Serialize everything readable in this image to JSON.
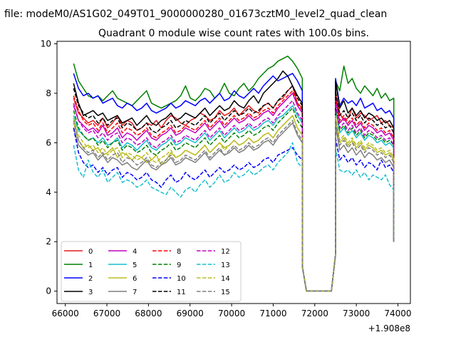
{
  "header": {
    "suptitle": "file: modeM0/AS1G02_049T01_9000000280_01673cztM0_level2_quad_clean"
  },
  "chart_data": {
    "type": "line",
    "title": "Quadrant 0 module wise count rates with 100.0s bins.",
    "xlabel": "",
    "ylabel": "",
    "x_offset_label": "+1.908e8",
    "x_offset": 190800000,
    "xlim": [
      65800,
      74300
    ],
    "ylim": [
      -0.5,
      10.1
    ],
    "x_ticks": [
      66000,
      67000,
      68000,
      69000,
      70000,
      71000,
      72000,
      73000,
      74000
    ],
    "y_ticks": [
      0,
      2,
      4,
      6,
      8,
      10
    ],
    "grid": false,
    "legend_position": "lower-left",
    "legend_columns": 4,
    "gap": {
      "drop_start": 71600,
      "drop_end": 71800,
      "zero_start": 71800,
      "zero_end": 72400,
      "rise_end": 72600
    },
    "segments": [
      {
        "x_start": 66200,
        "x_end": 71700
      },
      {
        "x_start": 72500,
        "x_end": 73900
      }
    ],
    "series": [
      {
        "name": "0",
        "color": "#e41a1c",
        "dash": "solid",
        "seg1": [
          7.8,
          7.2,
          7.0,
          6.8,
          6.9,
          6.7,
          7.0,
          6.6,
          6.8,
          7.1,
          6.7,
          6.9,
          6.8,
          6.5,
          6.6,
          6.8,
          6.7,
          6.9,
          6.6,
          6.9,
          7.1,
          7.0,
          6.8,
          6.7,
          6.9,
          7.0,
          7.2,
          7.1,
          6.9,
          7.0,
          7.3,
          7.1,
          7.2,
          7.4,
          7.1,
          7.3,
          7.5,
          7.3,
          7.2,
          7.5,
          7.6,
          7.4,
          7.7,
          7.8,
          8.1,
          8.3,
          7.6,
          7.4
        ],
        "seg2": [
          8.0,
          7.2,
          6.9,
          7.0,
          7.4,
          7.0,
          7.2,
          7.1,
          6.9,
          7.0,
          7.1,
          6.8,
          6.9,
          6.7,
          6.6
        ]
      },
      {
        "name": "1",
        "color": "#008000",
        "dash": "solid",
        "seg1": [
          9.2,
          8.5,
          8.2,
          7.9,
          7.8,
          7.9,
          7.7,
          7.9,
          8.1,
          7.8,
          7.7,
          7.6,
          7.5,
          7.7,
          7.9,
          8.1,
          7.6,
          7.5,
          7.4,
          7.5,
          7.6,
          7.7,
          7.9,
          8.3,
          7.8,
          7.7,
          7.9,
          8.2,
          8.1,
          7.8,
          8.0,
          8.4,
          8.0,
          7.9,
          8.2,
          8.4,
          8.1,
          8.3,
          8.6,
          8.8,
          9.0,
          9.1,
          9.3,
          9.4,
          9.5,
          9.3,
          9.0,
          8.6
        ],
        "seg2": [
          8.5,
          8.1,
          9.1,
          8.4,
          8.6,
          8.2,
          8.0,
          8.3,
          8.1,
          7.9,
          8.2,
          7.8,
          8.0,
          7.7,
          7.8
        ]
      },
      {
        "name": "2",
        "color": "#0000ff",
        "dash": "solid",
        "seg1": [
          8.8,
          8.2,
          7.9,
          8.0,
          7.8,
          7.9,
          7.6,
          7.7,
          7.8,
          7.5,
          7.4,
          7.6,
          7.5,
          7.3,
          7.4,
          7.6,
          7.3,
          7.2,
          7.3,
          7.4,
          7.6,
          7.4,
          7.5,
          7.7,
          7.6,
          7.5,
          7.7,
          7.8,
          7.6,
          7.8,
          8.0,
          7.7,
          7.8,
          8.1,
          7.9,
          7.8,
          8.0,
          8.2,
          8.0,
          8.3,
          8.5,
          8.7,
          8.5,
          8.6,
          8.7,
          8.8,
          8.5,
          8.1
        ],
        "seg2": [
          8.6,
          7.5,
          7.8,
          7.6,
          7.7,
          7.5,
          7.8,
          7.4,
          7.5,
          7.6,
          7.3,
          7.4,
          7.2,
          7.3,
          7.0
        ]
      },
      {
        "name": "3",
        "color": "#000000",
        "dash": "solid",
        "seg1": [
          8.4,
          7.6,
          7.1,
          7.2,
          7.3,
          7.1,
          7.2,
          6.9,
          7.0,
          7.1,
          6.8,
          6.9,
          7.0,
          6.7,
          6.9,
          7.1,
          6.8,
          6.7,
          6.9,
          7.0,
          7.2,
          6.9,
          7.0,
          7.2,
          7.1,
          7.0,
          7.2,
          7.4,
          7.1,
          7.3,
          7.5,
          7.3,
          7.4,
          7.7,
          7.5,
          7.4,
          7.7,
          7.9,
          7.6,
          8.0,
          8.2,
          8.4,
          8.6,
          8.9,
          8.7,
          8.3,
          7.9,
          7.6
        ],
        "seg2": [
          8.5,
          7.4,
          7.7,
          7.2,
          7.4,
          7.1,
          7.3,
          7.0,
          7.2,
          7.1,
          6.9,
          7.0,
          6.8,
          6.9,
          6.6
        ]
      },
      {
        "name": "4",
        "color": "#c000c0",
        "dash": "solid",
        "seg1": [
          7.5,
          6.9,
          6.7,
          6.5,
          6.6,
          6.4,
          6.7,
          6.3,
          6.4,
          6.6,
          6.2,
          6.4,
          6.3,
          6.1,
          6.3,
          6.5,
          6.2,
          6.1,
          6.3,
          6.4,
          6.6,
          6.3,
          6.4,
          6.6,
          6.5,
          6.4,
          6.6,
          6.8,
          6.5,
          6.7,
          6.9,
          6.6,
          6.8,
          7.0,
          6.8,
          6.9,
          7.1,
          6.9,
          7.0,
          7.2,
          7.3,
          7.1,
          7.4,
          7.6,
          7.8,
          8.0,
          7.5,
          7.2
        ],
        "seg2": [
          7.8,
          6.8,
          7.0,
          6.7,
          6.9,
          6.6,
          6.8,
          6.5,
          6.7,
          6.6,
          6.4,
          6.5,
          6.3,
          6.4,
          6.1
        ]
      },
      {
        "name": "5",
        "color": "#17becf",
        "dash": "solid",
        "seg1": [
          7.1,
          6.5,
          6.3,
          6.1,
          6.2,
          6.0,
          6.2,
          5.9,
          6.0,
          6.2,
          5.8,
          6.0,
          5.9,
          5.7,
          5.9,
          6.1,
          5.8,
          5.7,
          5.9,
          6.0,
          6.2,
          5.9,
          6.0,
          6.2,
          6.1,
          6.0,
          6.2,
          6.4,
          6.1,
          6.3,
          6.5,
          6.2,
          6.4,
          6.6,
          6.4,
          6.5,
          6.7,
          6.5,
          6.6,
          6.8,
          6.9,
          6.7,
          7.0,
          7.1,
          7.3,
          7.5,
          7.1,
          6.8
        ],
        "seg2": [
          7.4,
          6.4,
          6.6,
          6.3,
          6.5,
          6.2,
          6.4,
          6.1,
          6.3,
          6.2,
          6.0,
          6.1,
          5.9,
          6.0,
          5.8
        ]
      },
      {
        "name": "6",
        "color": "#bcbd22",
        "dash": "solid",
        "seg1": [
          6.8,
          6.1,
          5.8,
          5.9,
          5.7,
          5.8,
          5.5,
          5.6,
          5.8,
          5.4,
          5.6,
          5.5,
          5.3,
          5.5,
          5.4,
          5.2,
          5.3,
          5.5,
          5.1,
          5.3,
          5.6,
          5.4,
          5.5,
          5.7,
          5.6,
          5.5,
          5.7,
          5.9,
          5.6,
          5.8,
          6.0,
          5.8,
          5.9,
          6.1,
          5.9,
          6.0,
          6.2,
          6.0,
          6.1,
          6.3,
          6.4,
          6.2,
          6.5,
          6.7,
          6.9,
          7.1,
          6.6,
          6.3
        ],
        "seg2": [
          7.0,
          6.0,
          6.2,
          5.9,
          6.1,
          5.8,
          6.0,
          5.7,
          5.9,
          5.8,
          5.6,
          5.7,
          5.5,
          5.6,
          5.3
        ]
      },
      {
        "name": "7",
        "color": "#7f7f7f",
        "dash": "solid",
        "seg1": [
          6.6,
          5.9,
          5.7,
          5.5,
          5.6,
          5.3,
          5.5,
          5.2,
          5.4,
          5.3,
          5.1,
          5.2,
          5.0,
          4.9,
          5.1,
          5.3,
          5.0,
          4.9,
          5.1,
          5.2,
          5.4,
          5.1,
          5.2,
          5.4,
          5.3,
          5.2,
          5.4,
          5.6,
          5.3,
          5.5,
          5.7,
          5.5,
          5.6,
          5.8,
          5.6,
          5.7,
          5.9,
          5.7,
          5.8,
          6.0,
          6.1,
          5.9,
          6.2,
          6.4,
          6.6,
          6.8,
          6.3,
          6.0
        ],
        "seg2": [
          6.7,
          5.7,
          5.9,
          5.6,
          5.8,
          5.5,
          5.7,
          5.4,
          5.6,
          5.5,
          5.3,
          5.4,
          5.2,
          5.3,
          5.0
        ]
      },
      {
        "name": "8",
        "color": "#ff0000",
        "dash": "dashed",
        "seg1": [
          7.9,
          7.3,
          6.9,
          6.7,
          6.8,
          6.5,
          6.8,
          6.4,
          6.6,
          6.8,
          6.4,
          6.6,
          6.5,
          6.3,
          6.4,
          6.6,
          6.3,
          6.2,
          6.4,
          6.5,
          6.7,
          6.4,
          6.5,
          6.7,
          6.6,
          6.5,
          6.7,
          6.9,
          6.6,
          6.8,
          7.0,
          6.7,
          6.9,
          7.1,
          6.9,
          7.0,
          7.2,
          7.0,
          7.1,
          7.3,
          7.4,
          7.2,
          7.5,
          7.7,
          7.9,
          8.1,
          7.6,
          7.3
        ],
        "seg2": [
          7.9,
          6.9,
          7.1,
          6.8,
          7.0,
          6.7,
          6.9,
          6.6,
          6.8,
          6.7,
          6.5,
          6.6,
          6.4,
          6.5,
          6.2
        ]
      },
      {
        "name": "9",
        "color": "#008000",
        "dash": "dashed",
        "seg1": [
          7.3,
          6.6,
          6.3,
          6.1,
          6.2,
          5.9,
          6.1,
          5.8,
          6.0,
          6.1,
          5.7,
          5.9,
          5.8,
          5.6,
          5.7,
          5.9,
          5.6,
          5.5,
          5.7,
          5.8,
          6.0,
          5.7,
          5.8,
          6.0,
          5.9,
          5.8,
          6.0,
          6.2,
          5.9,
          6.1,
          6.3,
          6.0,
          6.2,
          6.4,
          6.2,
          6.3,
          6.5,
          6.3,
          6.4,
          6.6,
          6.7,
          6.5,
          6.8,
          7.0,
          7.2,
          7.4,
          6.9,
          6.6
        ],
        "seg2": [
          7.5,
          6.5,
          6.7,
          6.4,
          6.6,
          6.3,
          6.5,
          6.2,
          6.4,
          6.3,
          6.1,
          6.2,
          6.0,
          6.1,
          5.9
        ]
      },
      {
        "name": "10",
        "color": "#0000ff",
        "dash": "dashed",
        "seg1": [
          6.6,
          5.6,
          5.2,
          5.0,
          5.1,
          4.8,
          5.0,
          4.7,
          4.9,
          5.0,
          4.6,
          4.8,
          4.7,
          4.5,
          4.6,
          4.8,
          4.5,
          4.4,
          4.2,
          4.5,
          4.7,
          4.4,
          4.5,
          4.8,
          4.6,
          4.5,
          4.7,
          4.9,
          4.6,
          4.8,
          5.0,
          4.8,
          4.9,
          5.1,
          4.9,
          5.0,
          5.2,
          5.0,
          5.1,
          5.3,
          5.4,
          5.2,
          5.5,
          5.6,
          5.7,
          5.8,
          5.5,
          5.3
        ],
        "seg2": [
          6.2,
          5.3,
          5.5,
          5.2,
          5.4,
          5.1,
          5.3,
          5.0,
          5.2,
          5.1,
          4.9,
          5.3,
          5.0,
          5.1,
          4.8
        ]
      },
      {
        "name": "11",
        "color": "#000000",
        "dash": "dashed",
        "seg1": [
          8.2,
          7.5,
          7.2,
          7.0,
          7.1,
          6.8,
          7.0,
          6.7,
          6.9,
          7.0,
          6.6,
          6.8,
          6.7,
          6.5,
          6.6,
          6.8,
          6.5,
          6.4,
          6.6,
          6.7,
          6.9,
          6.6,
          6.7,
          6.9,
          6.8,
          6.7,
          6.9,
          7.1,
          6.8,
          7.0,
          7.2,
          6.9,
          7.1,
          7.3,
          7.1,
          7.2,
          7.4,
          7.2,
          7.3,
          7.5,
          7.6,
          7.4,
          7.7,
          7.9,
          8.1,
          8.3,
          7.8,
          7.5
        ],
        "seg2": [
          8.1,
          7.1,
          7.3,
          7.0,
          7.2,
          6.9,
          7.1,
          6.8,
          7.0,
          6.9,
          6.7,
          6.8,
          6.6,
          6.7,
          6.4
        ]
      },
      {
        "name": "12",
        "color": "#c000c0",
        "dash": "dashed",
        "seg1": [
          7.6,
          6.9,
          6.6,
          6.4,
          6.5,
          6.2,
          6.4,
          6.1,
          6.3,
          6.4,
          6.0,
          6.2,
          6.1,
          5.9,
          6.0,
          6.2,
          5.9,
          5.8,
          6.0,
          6.1,
          6.3,
          6.0,
          6.1,
          6.3,
          6.2,
          6.1,
          6.3,
          6.5,
          6.2,
          6.4,
          6.6,
          6.3,
          6.5,
          6.7,
          6.5,
          6.6,
          6.8,
          6.6,
          6.7,
          6.9,
          7.0,
          6.8,
          7.1,
          7.3,
          7.5,
          7.7,
          7.2,
          6.9
        ],
        "seg2": [
          7.6,
          6.6,
          6.8,
          6.5,
          6.7,
          6.4,
          6.6,
          6.3,
          6.5,
          6.4,
          6.2,
          6.3,
          6.1,
          6.2,
          5.9
        ]
      },
      {
        "name": "13",
        "color": "#17becf",
        "dash": "dashed",
        "seg1": [
          5.9,
          4.9,
          4.6,
          5.3,
          4.8,
          4.6,
          4.9,
          4.4,
          4.6,
          4.8,
          4.4,
          4.5,
          4.4,
          4.2,
          4.3,
          4.5,
          4.2,
          4.1,
          4.0,
          3.9,
          4.2,
          4.0,
          3.8,
          4.1,
          4.2,
          4.0,
          4.3,
          4.5,
          4.2,
          4.4,
          4.7,
          4.4,
          4.5,
          4.8,
          4.6,
          4.7,
          4.9,
          4.7,
          4.8,
          5.0,
          5.1,
          4.9,
          5.2,
          5.4,
          5.6,
          6.0,
          5.2,
          5.0
        ],
        "seg2": [
          5.8,
          4.9,
          4.8,
          4.9,
          4.7,
          4.9,
          4.6,
          4.8,
          4.5,
          4.7,
          4.6,
          4.5,
          4.7,
          4.3,
          4.1
        ]
      },
      {
        "name": "14",
        "color": "#bcbd22",
        "dash": "dashed",
        "seg1": [
          7.0,
          6.3,
          6.0,
          5.8,
          5.9,
          5.6,
          5.8,
          5.5,
          5.7,
          5.8,
          5.4,
          5.6,
          5.5,
          5.3,
          5.4,
          5.6,
          5.3,
          5.2,
          5.4,
          5.5,
          5.7,
          5.4,
          5.5,
          5.7,
          5.6,
          5.5,
          5.7,
          5.9,
          5.6,
          5.8,
          6.0,
          5.7,
          5.9,
          6.1,
          5.9,
          6.0,
          6.2,
          6.0,
          6.1,
          6.3,
          6.4,
          6.2,
          6.5,
          6.7,
          6.9,
          7.1,
          6.6,
          6.3
        ],
        "seg2": [
          7.1,
          6.1,
          6.3,
          6.0,
          6.2,
          5.9,
          6.1,
          5.8,
          6.0,
          5.9,
          5.7,
          5.8,
          5.6,
          5.7,
          5.4
        ]
      },
      {
        "name": "15",
        "color": "#7f7f7f",
        "dash": "dashed",
        "seg1": [
          6.9,
          6.1,
          5.8,
          5.6,
          5.7,
          5.4,
          5.6,
          5.3,
          5.5,
          5.6,
          5.2,
          5.4,
          5.3,
          5.1,
          5.2,
          5.4,
          5.1,
          5.0,
          5.2,
          5.3,
          5.5,
          5.2,
          5.3,
          5.5,
          5.4,
          5.3,
          5.5,
          5.7,
          5.4,
          5.6,
          5.8,
          5.5,
          5.7,
          5.9,
          5.7,
          5.8,
          6.0,
          5.8,
          5.9,
          6.1,
          6.2,
          6.0,
          6.3,
          6.5,
          6.7,
          6.9,
          6.4,
          6.1
        ],
        "seg2": [
          6.9,
          5.9,
          6.1,
          5.8,
          6.0,
          5.7,
          5.9,
          5.6,
          5.8,
          5.7,
          5.5,
          5.6,
          5.4,
          5.5,
          5.2
        ]
      }
    ]
  }
}
